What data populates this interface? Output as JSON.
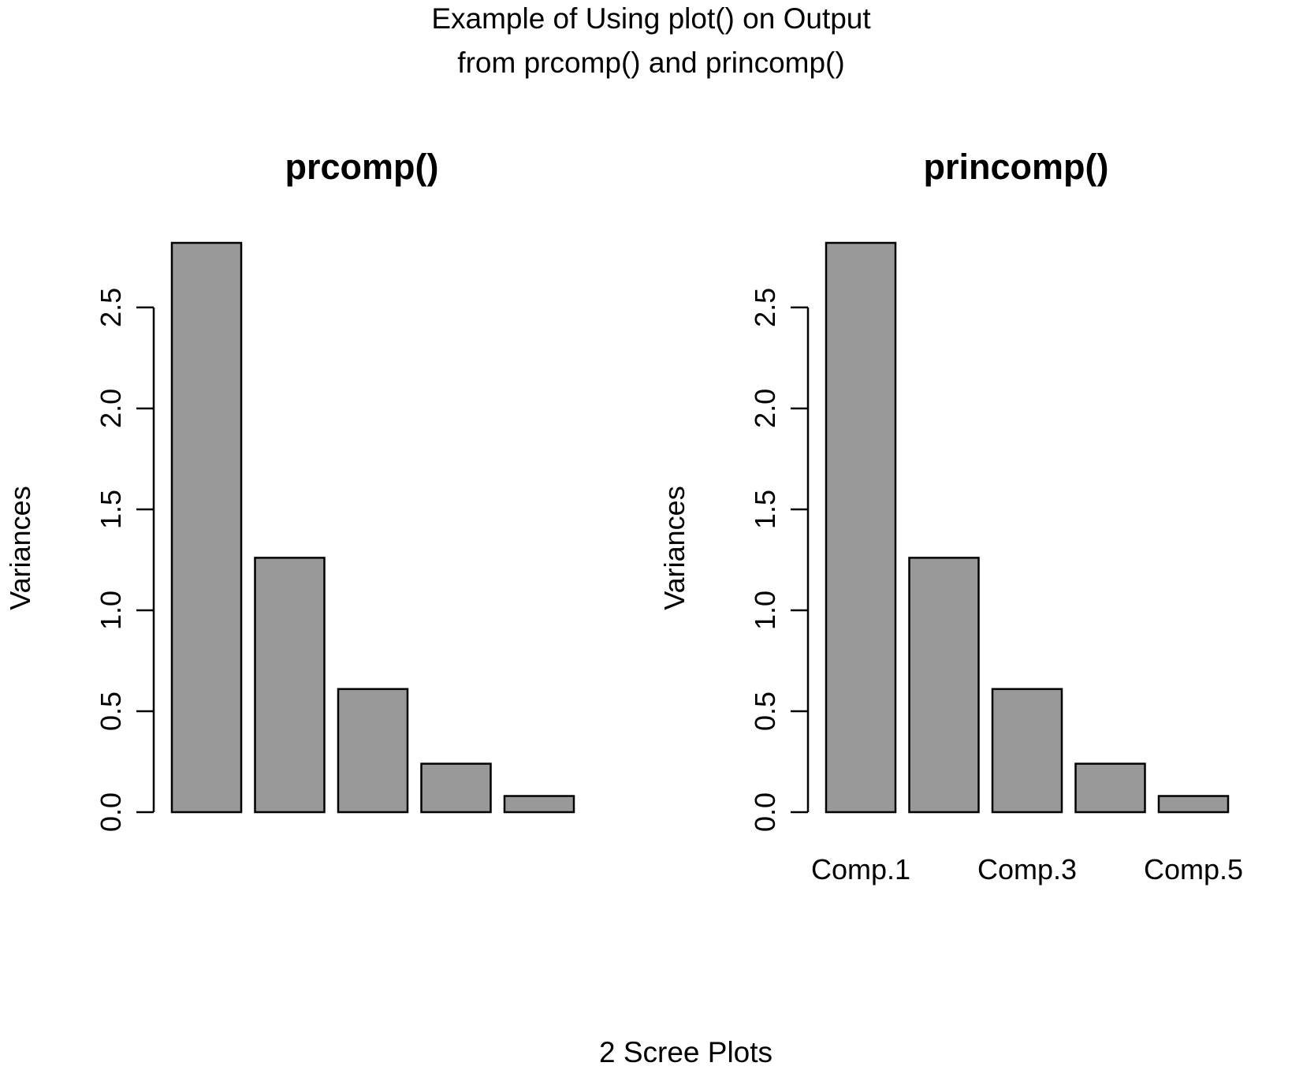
{
  "figure": {
    "title_lines": [
      "Example of Using plot() on Output",
      "from prcomp() and princomp()"
    ],
    "caption": "2 Scree Plots"
  },
  "chart_data": [
    {
      "type": "bar",
      "title": "prcomp()",
      "ylabel": "Variances",
      "xlabel": "",
      "categories": [
        "",
        "",
        "",
        "",
        ""
      ],
      "values": [
        2.82,
        1.26,
        0.61,
        0.24,
        0.08
      ],
      "ylim": [
        0,
        2.82
      ],
      "yticks": [
        "0.0",
        "0.5",
        "1.0",
        "1.5",
        "2.0",
        "2.5"
      ],
      "bar_color": "#999999",
      "grid": false
    },
    {
      "type": "bar",
      "title": "princomp()",
      "ylabel": "Variances",
      "xlabel": "",
      "categories": [
        "Comp.1",
        "",
        "Comp.3",
        "",
        "Comp.5"
      ],
      "values": [
        2.82,
        1.26,
        0.61,
        0.24,
        0.08
      ],
      "ylim": [
        0,
        2.82
      ],
      "yticks": [
        "0.0",
        "0.5",
        "1.0",
        "1.5",
        "2.0",
        "2.5"
      ],
      "bar_color": "#999999",
      "grid": false
    }
  ]
}
